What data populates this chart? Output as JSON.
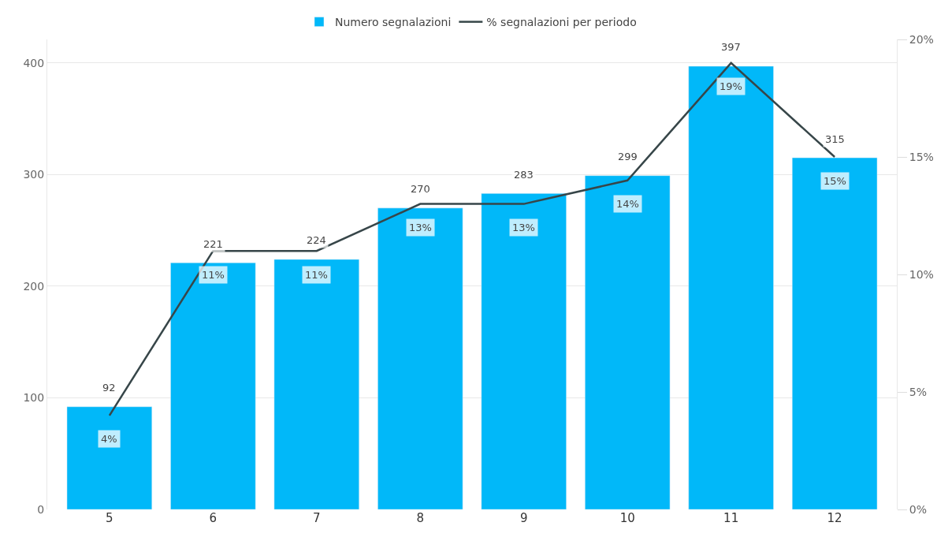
{
  "chart_data": {
    "type": "bar",
    "categories": [
      "5",
      "6",
      "7",
      "8",
      "9",
      "10",
      "11",
      "12"
    ],
    "series": [
      {
        "name": "Numero segnalazioni",
        "color": "#01b8f9",
        "values": [
          92,
          221,
          224,
          270,
          283,
          299,
          397,
          315
        ],
        "data_labels": true
      },
      {
        "name": "% segnalazioni per periodo",
        "type": "line",
        "axis": "y2",
        "color": "#374649",
        "values": [
          4,
          11,
          11,
          13,
          13,
          14,
          19,
          15
        ],
        "value_labels": [
          "4%",
          "11%",
          "11%",
          "13%",
          "13%",
          "14%",
          "19%",
          "15%"
        ]
      }
    ],
    "ylim": [
      0,
      421
    ],
    "yticks": [
      0,
      100,
      200,
      300,
      400
    ],
    "y2lim": [
      0,
      20
    ],
    "y2ticks": [
      {
        "value": 0,
        "label": "0%"
      },
      {
        "value": 5,
        "label": "5%"
      },
      {
        "value": 10,
        "label": "10%"
      },
      {
        "value": 15,
        "label": "15%"
      },
      {
        "value": 20,
        "label": "20%"
      }
    ],
    "grid": "y",
    "legend": "top",
    "marker": "none",
    "line_style": "solid"
  }
}
